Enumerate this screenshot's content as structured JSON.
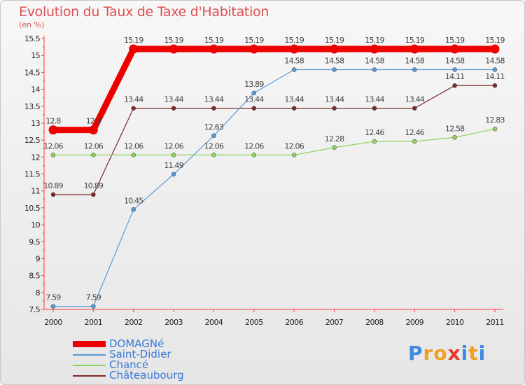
{
  "title": "Evolution du Taux de Taxe d'Habitation",
  "unit": "(en %)",
  "logo": {
    "text": "Proxiti",
    "letters": [
      "P",
      "r",
      "o",
      "x",
      "i",
      "t",
      "i"
    ],
    "colors": [
      "#3d8be0",
      "#f0a020",
      "#f0a020",
      "#e83a2e",
      "#3d8be0",
      "#f0a020",
      "#3d8be0"
    ]
  },
  "chart_data": {
    "type": "line",
    "title": "Evolution du Taux de Taxe d'Habitation",
    "ylabel": "(en %)",
    "xlabel": "",
    "ylim": [
      7.5,
      15.5
    ],
    "yticks": [
      7.5,
      8,
      8.5,
      9,
      9.5,
      10,
      10.5,
      11,
      11.5,
      12,
      12.5,
      13,
      13.5,
      14,
      14.5,
      15,
      15.5
    ],
    "ytick_labels": [
      "7.5",
      "8",
      "8.5",
      "9",
      "9.5",
      "10",
      "10.5",
      "11",
      "11.5",
      "12",
      "12.5",
      "13",
      "13.5",
      "14",
      "14.5",
      "15",
      "15.5"
    ],
    "categories": [
      "2000",
      "2001",
      "2002",
      "2003",
      "2004",
      "2005",
      "2006",
      "2007",
      "2008",
      "2009",
      "2010",
      "2011"
    ],
    "series": [
      {
        "name": "DOMAGNé",
        "color": "#ee0000",
        "values": [
          12.8,
          12.8,
          15.19,
          15.19,
          15.19,
          15.19,
          15.19,
          15.19,
          15.19,
          15.19,
          15.19,
          15.19
        ],
        "labels": [
          "12.8",
          "12.8",
          "15.19",
          "15.19",
          "15.19",
          "15.19",
          "15.19",
          "15.19",
          "15.19",
          "15.19",
          "15.19",
          "15.19"
        ]
      },
      {
        "name": "Saint-Didier",
        "color": "#5b9bd5",
        "values": [
          7.59,
          7.59,
          10.45,
          11.49,
          12.63,
          13.89,
          14.58,
          14.58,
          14.58,
          14.58,
          14.58,
          14.58
        ],
        "labels": [
          "7.59",
          "7.59",
          "10.45",
          "11.49",
          "12.63",
          "13.89",
          "14.58",
          "14.58",
          "14.58",
          "14.58",
          "14.58",
          "14.58"
        ]
      },
      {
        "name": "Chancé",
        "color": "#8fd45b",
        "values": [
          12.06,
          12.06,
          12.06,
          12.06,
          12.06,
          12.06,
          12.06,
          12.28,
          12.46,
          12.46,
          12.58,
          12.83
        ],
        "labels": [
          "12.06",
          "12.06",
          "12.06",
          "12.06",
          "12.06",
          "12.06",
          "12.06",
          "12.28",
          "12.46",
          "12.46",
          "12.58",
          "12.83"
        ]
      },
      {
        "name": "Châteaubourg",
        "color": "#7a2a2a",
        "values": [
          10.89,
          10.89,
          13.44,
          13.44,
          13.44,
          13.44,
          13.44,
          13.44,
          13.44,
          13.44,
          14.11,
          14.11
        ],
        "labels": [
          "10.89",
          "10.89",
          "13.44",
          "13.44",
          "13.44",
          "13.44",
          "13.44",
          "13.44",
          "13.44",
          "13.44",
          "14.11",
          "14.11"
        ]
      }
    ],
    "legend": "bottom-left",
    "grid": false
  }
}
